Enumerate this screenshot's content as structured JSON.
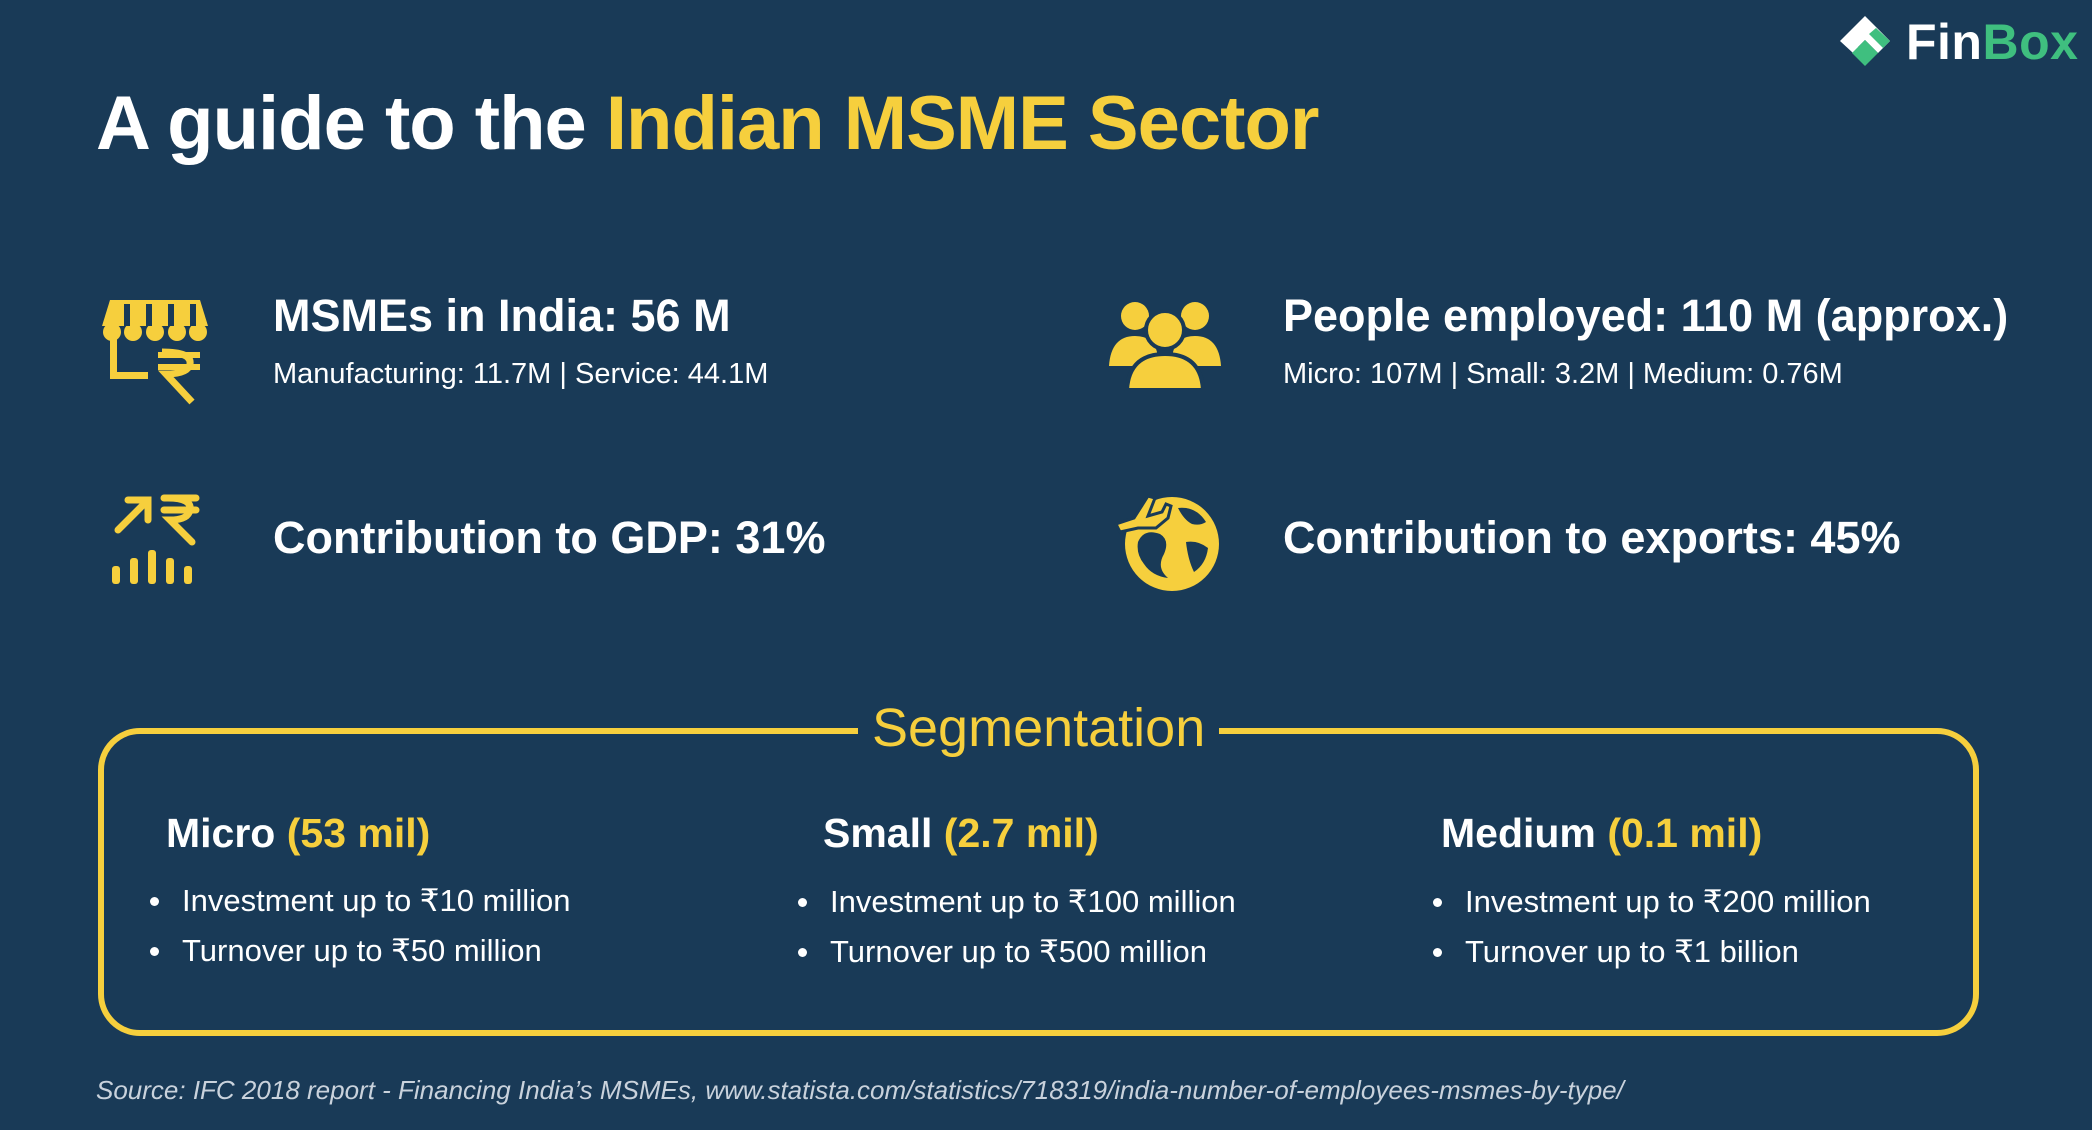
{
  "brand": {
    "logo_text_1": "Fin",
    "logo_text_2": "Box",
    "logo_color": "#3fbf7f"
  },
  "title": {
    "part1": "A guide to the ",
    "part2": "Indian MSME Sector"
  },
  "stats": [
    {
      "icon": "shop-rupee-icon",
      "heading": "MSMEs in India: 56 M",
      "sub": "Manufacturing: 11.7M | Service: 44.1M"
    },
    {
      "icon": "people-group-icon",
      "heading": "People employed: 110 M (approx.)",
      "sub": "Micro: 107M | Small: 3.2M | Medium: 0.76M"
    },
    {
      "icon": "growth-rupee-chart-icon",
      "heading": "Contribution to GDP: 31%"
    },
    {
      "icon": "globe-plane-icon",
      "heading": "Contribution to exports: 45%"
    }
  ],
  "segmentation": {
    "title": "Segmentation",
    "columns": [
      {
        "name": "Micro",
        "count": "(53 mil)",
        "bullets": [
          "Investment up to ₹10 million",
          "Turnover up to ₹50 million"
        ]
      },
      {
        "name": "Small",
        "count": "(2.7 mil)",
        "bullets": [
          "Investment up to ₹100 million",
          "Turnover up to ₹500 million"
        ]
      },
      {
        "name": "Medium",
        "count": "(0.1 mil)",
        "bullets": [
          "Investment up to ₹200 million",
          "Turnover up to ₹1 billion"
        ]
      }
    ]
  },
  "source": "Source:  IFC 2018 report - Financing India’s MSMEs, www.statista.com/statistics/718319/india-number-of-employees-msmes-by-type/",
  "colors": {
    "background": "#193a57",
    "accent": "#f6cf3d",
    "text": "#ffffff"
  }
}
